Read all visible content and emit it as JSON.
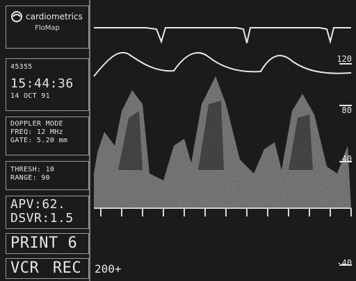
{
  "left_panel": {
    "brand": "cardiometrics",
    "product": "FloMap",
    "id": "45355",
    "time": "15:44:36",
    "date": "14 OCT 91",
    "mode": "DOPPLER MODE",
    "freq": "FREQ: 12 MHz",
    "gate": "GATE: 5.20 mm",
    "thresh": "THRESH: 10",
    "range": "RANGE: 90",
    "apv": "APV:62.",
    "dsvr": "DSVR:1.5",
    "print": "PRINT 6",
    "vcr": "VCR",
    "rec": "REC",
    "scale_label": "200+"
  },
  "right_scale": {
    "labels": [
      "120",
      "80",
      "40",
      "-40"
    ]
  }
}
